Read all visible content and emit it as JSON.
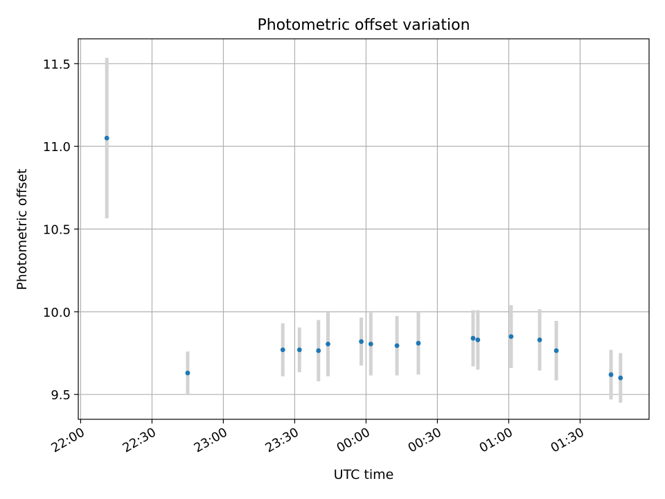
{
  "chart_data": {
    "type": "scatter",
    "title": "Photometric offset variation",
    "xlabel": "UTC time",
    "ylabel": "Photometric offset",
    "x_ticks": [
      "22:00",
      "22:30",
      "23:00",
      "23:30",
      "00:00",
      "00:30",
      "01:00",
      "01:30"
    ],
    "y_ticks": [
      "9.5",
      "10.0",
      "10.5",
      "11.0",
      "11.5"
    ],
    "xlim": [
      "21:59",
      "01:59"
    ],
    "ylim": [
      9.35,
      11.65
    ],
    "grid": true,
    "point_color": "#1f77b4",
    "errorbar_color": "#d3d3d3",
    "points": [
      {
        "time": "22:11",
        "y": 11.05,
        "err": 0.485
      },
      {
        "time": "22:45",
        "y": 9.63,
        "err": 0.13
      },
      {
        "time": "23:25",
        "y": 9.77,
        "err": 0.16
      },
      {
        "time": "23:32",
        "y": 9.77,
        "err": 0.135
      },
      {
        "time": "23:40",
        "y": 9.765,
        "err": 0.185
      },
      {
        "time": "23:44",
        "y": 9.805,
        "err": 0.195
      },
      {
        "time": "23:58",
        "y": 9.82,
        "err": 0.145
      },
      {
        "time": "00:02",
        "y": 9.805,
        "err": 0.19
      },
      {
        "time": "00:13",
        "y": 9.795,
        "err": 0.18
      },
      {
        "time": "00:22",
        "y": 9.81,
        "err": 0.19
      },
      {
        "time": "00:45",
        "y": 9.84,
        "err": 0.17
      },
      {
        "time": "00:47",
        "y": 9.83,
        "err": 0.18
      },
      {
        "time": "01:01",
        "y": 9.85,
        "err": 0.19
      },
      {
        "time": "01:13",
        "y": 9.83,
        "err": 0.185
      },
      {
        "time": "01:20",
        "y": 9.765,
        "err": 0.18
      },
      {
        "time": "01:43",
        "y": 9.62,
        "err": 0.15
      },
      {
        "time": "01:47",
        "y": 9.6,
        "err": 0.15
      }
    ]
  }
}
